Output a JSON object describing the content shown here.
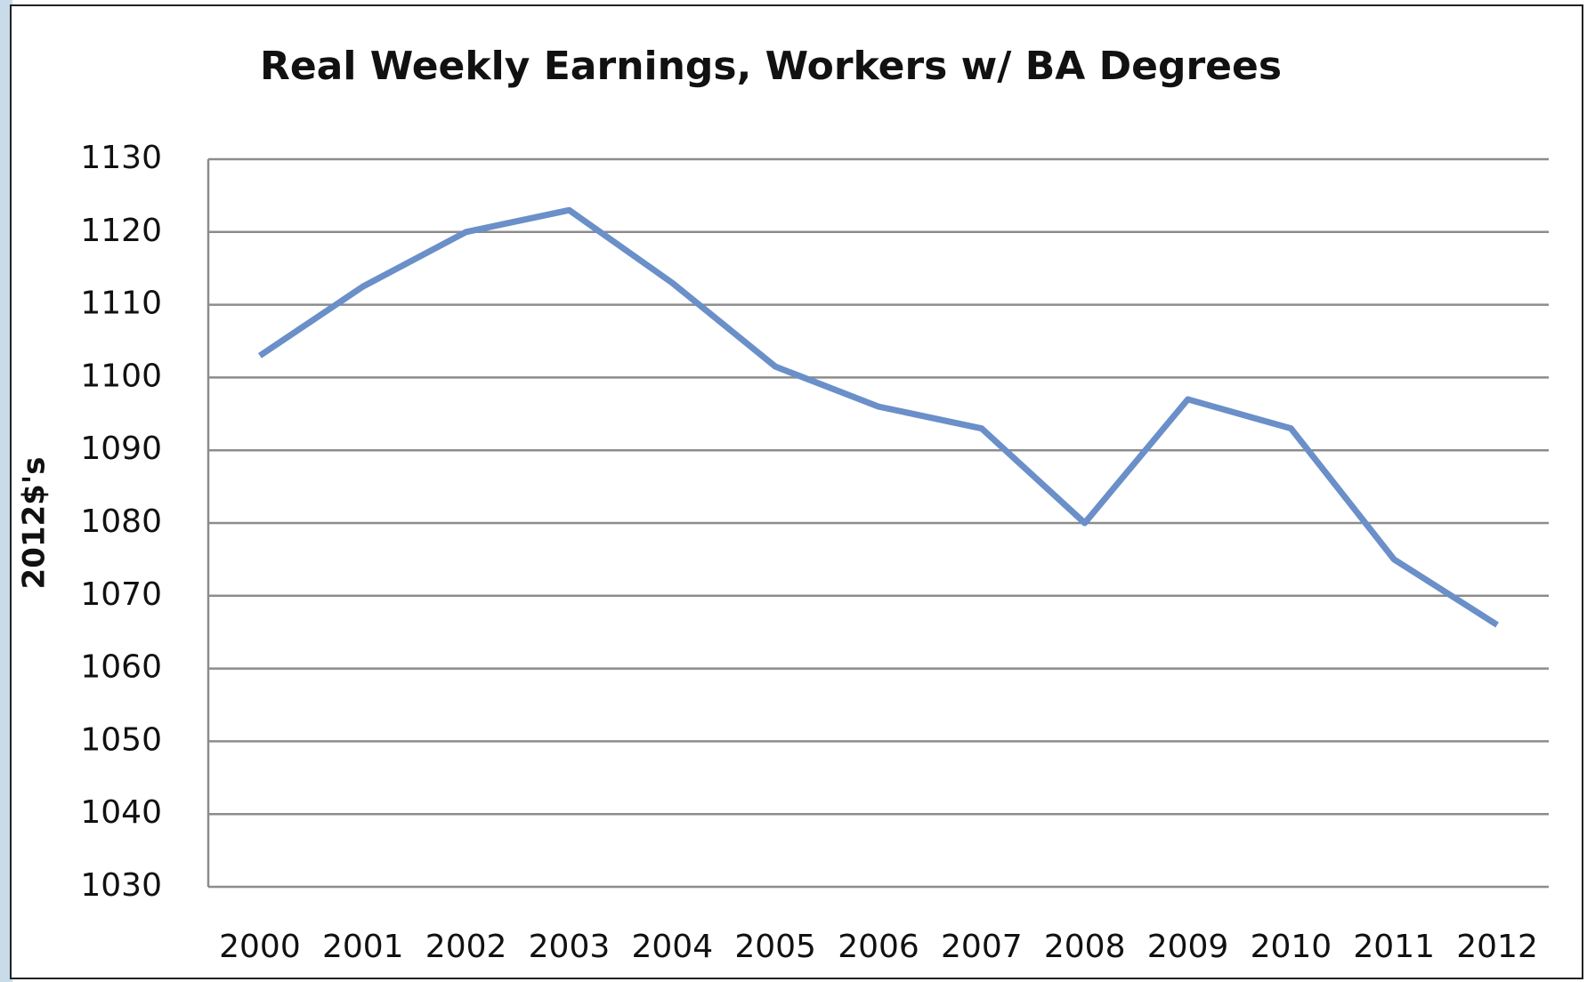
{
  "chart_data": {
    "type": "line",
    "title": "Real Weekly Earnings, Workers w/ BA Degrees",
    "y_label": "2012$'s",
    "categories": [
      "2000",
      "2001",
      "2002",
      "2003",
      "2004",
      "2005",
      "2006",
      "2007",
      "2008",
      "2009",
      "2010",
      "2011",
      "2012"
    ],
    "series": [
      {
        "name": "Real Weekly Earnings",
        "color": "#6a8fc9",
        "values": [
          1103,
          1112.5,
          1120,
          1123,
          1113,
          1101.5,
          1096,
          1093,
          1080,
          1097,
          1093,
          1075,
          1066
        ]
      }
    ],
    "ylim": [
      1030,
      1130
    ],
    "yticks": [
      1030,
      1040,
      1050,
      1060,
      1070,
      1080,
      1090,
      1100,
      1110,
      1120,
      1130
    ],
    "grid": true
  }
}
